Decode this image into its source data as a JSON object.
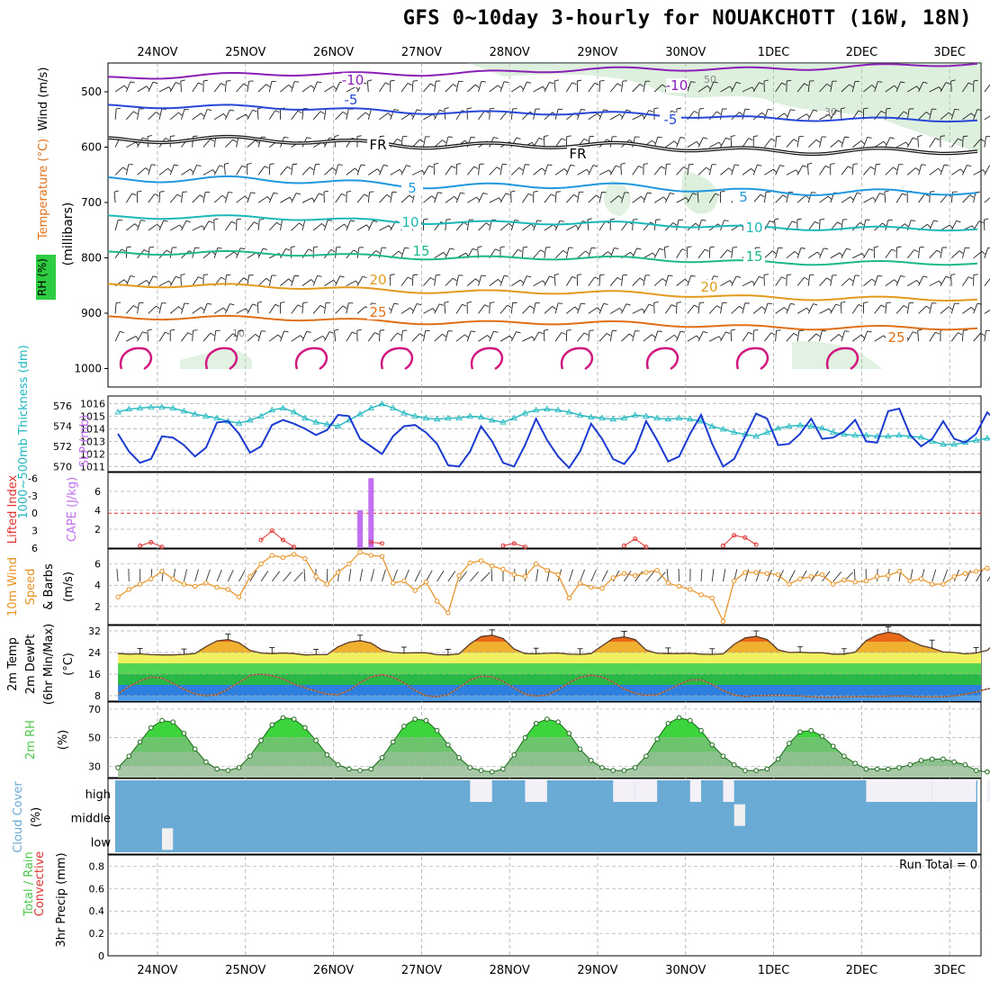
{
  "title": "GFS 0~10day 3-hourly for NOUAKCHOTT (16W, 18N)",
  "colors": {
    "rh_fill": "#9fd49f",
    "temp_purple": "#8a1fb8",
    "temp_blue": "#2747d8",
    "temp_lightblue": "#2098e0",
    "temp_teal": "#1cb8b8",
    "temp_green": "#1cb88c",
    "temp_orange": "#e49a1c",
    "temp_darkorange": "#e07018",
    "temp_magenta": "#d01880",
    "thickness": "#20b8c0",
    "slp": "#1a3ad0",
    "cape": "#c070f0",
    "lifted": "#e03030",
    "wind10": "#e89020",
    "rh2m": "#4cc94c",
    "cloud": "#6aabd6",
    "grid": "#aaaaaa"
  },
  "x_axis": {
    "dates": [
      "24NOV",
      "25NOV",
      "26NOV",
      "27NOV",
      "28NOV",
      "29NOV",
      "30NOV",
      "1DEC",
      "2DEC",
      "3DEC"
    ]
  },
  "panels": {
    "upper_air": {
      "ylabel_wind": "Wind (m/s)",
      "ylabel_temp": "Temperature (°C)",
      "ylabel_rh": "RH (%)",
      "ylabel_units": "(millibars)",
      "yticks": [
        "500",
        "600",
        "700",
        "800",
        "900",
        "1000"
      ]
    },
    "thickness_slp": {
      "ylabel_left": "1000~500mb Thickness (dm)",
      "ylabel_right": "SLP (mb)",
      "yticks_thickness": [
        "576",
        "574",
        "572",
        "570"
      ],
      "yticks_slp": [
        "1016",
        "1015",
        "1014",
        "1013",
        "1012",
        "1011"
      ]
    },
    "cape_li": {
      "ylabel_left": "Lifted Index",
      "ylabel_right": "CAPE (J/kg)",
      "yticks_li": [
        "-6",
        "-3",
        "0",
        "3",
        "6"
      ],
      "yticks_cape": [
        "6",
        "4",
        "2"
      ]
    },
    "wind10": {
      "ylabel": "10m Wind Speed & Barbs (m/s)",
      "ylabel_a": "10m Wind",
      "ylabel_b": "Speed",
      "ylabel_c": "& Barbs",
      "ylabel_d": "(m/s)",
      "yticks": [
        "6",
        "4",
        "2"
      ]
    },
    "temp2m": {
      "ylabel_a": "2m Temp",
      "ylabel_b": "2m DewPt",
      "ylabel_c": "(6hr Min/Max)",
      "ylabel_d": "(°C)",
      "yticks": [
        "32",
        "24",
        "16",
        "8"
      ]
    },
    "rh2m": {
      "ylabel": "2m RH",
      "ylabel_unit": "(%)",
      "yticks": [
        "70",
        "50",
        "30"
      ]
    },
    "cloud": {
      "ylabel": "Cloud Cover",
      "ylabel_unit": "(%)",
      "levels": [
        "high",
        "middle",
        "low"
      ]
    },
    "precip": {
      "ylabel_a": "Total / Rain",
      "ylabel_b": "Convective",
      "ylabel_c": "3hr Precip (mm)",
      "yticks": [
        "0.8",
        "0.6",
        "0.4",
        "0.2",
        "0"
      ],
      "run_total": "Run Total = 0"
    }
  },
  "contour_labels": {
    "m10": "-10",
    "m5": "-5",
    "fr": "FR",
    "p5": "5",
    "p10": "10",
    "p15": "15",
    "p20": "20",
    "p25": "25",
    "rh30": "30",
    "rh50": "50",
    "rh10": "10"
  },
  "chart_data": [
    {
      "type": "line",
      "title": "1000~500mb Thickness (dm) / SLP (mb)",
      "series": [
        {
          "name": "1000~500mb Thickness (dm)",
          "axis": "left",
          "ylim": [
            569.5,
            577
          ],
          "values": [
            575.4,
            575.7,
            575.8,
            575.9,
            575.9,
            575.8,
            575.5,
            575.2,
            575.0,
            574.8,
            574.5,
            574.3,
            574.6,
            575.0,
            575.6,
            575.8,
            575.4,
            574.8,
            574.4,
            574.2,
            574.0,
            574.6,
            575.2,
            575.8,
            576.2,
            575.8,
            575.3,
            575.0,
            574.8,
            574.7,
            574.8,
            574.8,
            575.0,
            574.9,
            574.6,
            574.4,
            574.8,
            575.3,
            575.6,
            575.7,
            575.6,
            575.4,
            575.1,
            574.9,
            574.8,
            574.7,
            574.8,
            575.1,
            575.0,
            574.8,
            574.7,
            574.8,
            574.7,
            574.5,
            574.0,
            573.7,
            573.4,
            573.2,
            573.0,
            573.4,
            573.8,
            574.0,
            574.1,
            574.0,
            573.8,
            573.4,
            573.2,
            573.1,
            573.1,
            573.0,
            573.0,
            573.1,
            573.0,
            572.9,
            572.5,
            572.2,
            572.2,
            572.4,
            572.6,
            572.8,
            572.7,
            572.5,
            572.3,
            572.3,
            572.4,
            572.4,
            572.2,
            572.0,
            571.9,
            571.8,
            571.5,
            571.3,
            571.3,
            571.2,
            571.0,
            570.8,
            570.6,
            570.3,
            570.1,
            570.0,
            569.8,
            569.8
          ]
        },
        {
          "name": "SLP (mb)",
          "axis": "right",
          "ylim": [
            1010.6,
            1016.6
          ],
          "values": [
            1013.6,
            1012.2,
            1011.3,
            1011.6,
            1013.4,
            1013.3,
            1012.7,
            1011.8,
            1012.5,
            1014.5,
            1014.6,
            1013.6,
            1012.1,
            1012.6,
            1014.3,
            1014.7,
            1014.4,
            1014.0,
            1013.5,
            1013.9,
            1015.1,
            1015.0,
            1013.2,
            1012.6,
            1012.0,
            1013.4,
            1014.2,
            1014.3,
            1013.7,
            1012.8,
            1011.1,
            1011.0,
            1012.2,
            1014.2,
            1013.0,
            1011.3,
            1011.0,
            1012.7,
            1014.8,
            1013.1,
            1011.8,
            1010.9,
            1012.2,
            1014.4,
            1013.2,
            1011.6,
            1011.2,
            1012.3,
            1014.6,
            1013.1,
            1011.4,
            1011.8,
            1013.6,
            1015.1,
            1012.8,
            1011.0,
            1011.6,
            1013.4,
            1015.2,
            1014.8,
            1012.7,
            1012.8,
            1013.6,
            1014.8,
            1013.2,
            1013.3,
            1013.8,
            1014.7,
            1013.0,
            1012.9,
            1015.4,
            1015.6,
            1013.5,
            1012.6,
            1013.2,
            1014.6,
            1013.2,
            1012.9,
            1013.6,
            1015.3,
            1014.5,
            1013.7,
            1013.0,
            1013.4,
            1014.7,
            1014.3,
            1013.0,
            1013.5,
            1016.1,
            1015.6,
            1013.6,
            1012.9,
            1014.0,
            1014.6,
            1013.7,
            1013.2,
            1013.8,
            1014.9,
            1013.8,
            1012.6,
            1013.1,
            1013.4
          ]
        }
      ],
      "xlabel": "",
      "grid": true
    },
    {
      "type": "bar",
      "title": "Lifted Index / CAPE (J/kg)",
      "series": [
        {
          "name": "CAPE (J/kg)",
          "axis": "right",
          "ylim": [
            0,
            8
          ],
          "bars": [
            {
              "day_index": 22,
              "value": 4.0
            },
            {
              "day_index": 23,
              "value": 7.4
            }
          ]
        },
        {
          "name": "Lifted Index",
          "axis": "left",
          "type": "line",
          "ylim": [
            6,
            -7
          ],
          "segments": [
            {
              "start": 2,
              "values": [
                5.6,
                5.0,
                5.8
              ]
            },
            {
              "start": 13,
              "values": [
                4.6,
                3.0,
                4.6,
                5.8
              ]
            },
            {
              "start": 23,
              "values": [
                5.0,
                5.2
              ]
            },
            {
              "start": 35,
              "values": [
                5.6,
                5.2,
                5.8
              ]
            },
            {
              "start": 46,
              "values": [
                5.6,
                4.4,
                5.8
              ]
            },
            {
              "start": 55,
              "values": [
                5.6,
                3.8,
                4.2,
                5.4
              ]
            },
            {
              "start": 96,
              "values": [
                4.4,
                3.8,
                4.6,
                4.6,
                5.8
              ]
            }
          ]
        }
      ],
      "reference_line_li": 0,
      "xlabel": "",
      "grid": true
    },
    {
      "type": "line",
      "title": "10m Wind Speed & Barbs (m/s)",
      "series": [
        {
          "name": "10m Wind Speed (m/s)",
          "ylim": [
            0.3,
            7.4
          ],
          "values": [
            2.9,
            3.6,
            4.1,
            4.6,
            5.3,
            4.6,
            4.1,
            3.9,
            4.2,
            3.8,
            3.6,
            2.9,
            4.8,
            6.0,
            6.8,
            6.6,
            6.9,
            6.5,
            4.8,
            4.1,
            5.2,
            6.0,
            7.1,
            6.8,
            6.7,
            4.2,
            4.4,
            3.5,
            4.3,
            2.5,
            1.4,
            4.9,
            6.1,
            6.3,
            5.8,
            5.5,
            5.0,
            4.8,
            6.0,
            5.4,
            5.0,
            2.8,
            4.2,
            3.8,
            3.7,
            4.7,
            5.1,
            4.9,
            5.2,
            5.4,
            4.2,
            3.9,
            3.6,
            3.1,
            2.8,
            0.6,
            4.4,
            5.2,
            5.2,
            5.1,
            5.0,
            4.1,
            4.6,
            4.8,
            5.0,
            4.1,
            4.5,
            4.3,
            4.4,
            4.8,
            4.9,
            5.3,
            4.4,
            4.6,
            4.1,
            4.1,
            4.8,
            5.1,
            5.3,
            5.6,
            5.1,
            4.2,
            4.2,
            4.7,
            4.6,
            4.5,
            4.7,
            4.4,
            5.1,
            5.2,
            5.4,
            4.7,
            2.6,
            4.3,
            6.1,
            6.2,
            6.5,
            6.6,
            7.0,
            6.8,
            6.2,
            6.3
          ]
        }
      ],
      "xlabel": "",
      "grid": true
    },
    {
      "type": "area",
      "title": "2m Temp / 2m DewPt (6hr Min/Max) (°C)",
      "series": [
        {
          "name": "2m Temp (°C)",
          "ylim": [
            6,
            34
          ],
          "values": [
            23.6,
            23.4,
            23.5,
            23.2,
            23.1,
            23.1,
            23.3,
            23.6,
            26.2,
            28.3,
            28.8,
            27.6,
            24.8,
            23.8,
            23.6,
            23.8,
            23.6,
            23.1,
            23.2,
            23.2,
            26.1,
            27.8,
            28.4,
            27.5,
            24.9,
            24.0,
            23.8,
            23.9,
            23.9,
            23.2,
            23.1,
            23.5,
            27.2,
            29.9,
            30.4,
            29.2,
            25.3,
            23.6,
            23.5,
            23.7,
            23.8,
            23.4,
            23.3,
            23.6,
            26.5,
            29.2,
            29.8,
            28.8,
            24.9,
            23.7,
            23.6,
            23.6,
            23.7,
            23.4,
            23.3,
            23.5,
            27.0,
            29.4,
            30.0,
            28.8,
            25.0,
            24.0,
            24.1,
            23.9,
            23.9,
            23.4,
            23.4,
            24.1,
            28.4,
            30.5,
            31.5,
            30.8,
            28.3,
            26.6,
            25.6,
            24.2,
            24.0,
            23.5,
            23.8,
            24.8,
            28.6,
            30.8,
            31.0,
            30.0,
            27.8,
            26.1,
            25.0,
            24.1,
            23.8,
            23.3,
            23.2,
            23.2,
            25.3,
            28.4,
            29.8,
            28.3,
            24.8,
            23.3,
            22.8,
            22.3,
            21.5,
            21.0
          ]
        },
        {
          "name": "2m DewPt (°C)",
          "ylim": [
            6,
            34
          ],
          "values": [
            8.5,
            11.4,
            13.5,
            14.9,
            14.5,
            12.6,
            10.4,
            8.7,
            8.0,
            8.4,
            10.4,
            13.0,
            15.5,
            16.0,
            15.4,
            14.2,
            12.3,
            10.9,
            9.7,
            8.6,
            8.4,
            10.0,
            12.8,
            14.9,
            15.8,
            14.8,
            12.8,
            10.0,
            8.0,
            7.6,
            8.4,
            11.0,
            13.8,
            15.2,
            15.0,
            13.3,
            10.8,
            8.6,
            7.9,
            8.2,
            10.2,
            12.8,
            14.8,
            15.6,
            14.9,
            13.0,
            10.5,
            8.9,
            8.2,
            8.3,
            10.1,
            12.2,
            13.8,
            13.9,
            12.2,
            9.9,
            8.3,
            7.7,
            8.0,
            8.1,
            8.2,
            8.1,
            7.9,
            7.6,
            7.4,
            7.4,
            7.5,
            7.6,
            7.7,
            7.7,
            7.8,
            7.9,
            7.8,
            7.6,
            7.5,
            7.6,
            7.9,
            8.6,
            9.4,
            10.5,
            10.9,
            10.2,
            9.1,
            8.6,
            8.8,
            9.4,
            10.2,
            10.8,
            10.9,
            10.2,
            9.0,
            8.2,
            7.9,
            8.7,
            11.2,
            13.6,
            14.6,
            14.7,
            14.2,
            13.4,
            12.6,
            12.1
          ]
        }
      ],
      "xlabel": "",
      "grid": true
    },
    {
      "type": "area",
      "title": "2m RH (%)",
      "series": [
        {
          "name": "2m RH (%)",
          "ylim": [
            22,
            75
          ],
          "values": [
            29,
            37,
            47,
            57,
            62,
            61,
            53,
            42,
            33,
            28,
            27,
            29,
            37,
            48,
            59,
            64,
            63,
            57,
            48,
            38,
            31,
            28,
            27,
            28,
            36,
            47,
            58,
            63,
            62,
            55,
            45,
            36,
            29,
            27,
            26,
            28,
            38,
            50,
            60,
            63,
            61,
            53,
            42,
            34,
            29,
            27,
            27,
            29,
            37,
            49,
            60,
            64,
            62,
            55,
            45,
            37,
            31,
            27,
            27,
            28,
            35,
            46,
            54,
            55,
            51,
            44,
            37,
            32,
            28,
            28,
            28,
            29,
            31,
            34,
            35,
            35,
            33,
            31,
            27,
            26,
            26,
            28,
            31,
            34,
            36,
            36,
            35,
            33,
            30,
            28,
            29,
            31,
            35,
            37,
            37,
            37,
            35,
            33,
            29,
            27,
            27,
            28
          ]
        }
      ],
      "xlabel": "",
      "grid": true
    },
    {
      "type": "heatmap",
      "title": "Cloud Cover (%)",
      "rows": [
        "high",
        "middle",
        "low"
      ],
      "note": "Blue = clear sky; white patches = cloud",
      "cloud_patches_high": [
        {
          "from_index": 32,
          "to_index": 34
        },
        {
          "from_index": 37,
          "to_index": 39
        },
        {
          "from_index": 45,
          "to_index": 47
        },
        {
          "from_index": 47,
          "to_index": 49
        },
        {
          "from_index": 52,
          "to_index": 53
        },
        {
          "from_index": 55,
          "to_index": 56
        },
        {
          "from_index": 68,
          "to_index": 74
        },
        {
          "from_index": 74,
          "to_index": 78
        },
        {
          "from_index": 79,
          "to_index": 89
        },
        {
          "from_index": 90,
          "to_index": 100
        }
      ],
      "cloud_patches_middle": [
        {
          "from_index": 56,
          "to_index": 57
        },
        {
          "from_index": 83,
          "to_index": 91
        },
        {
          "from_index": 95,
          "to_index": 98
        }
      ],
      "cloud_patches_low": [
        {
          "from_index": 4,
          "to_index": 5
        }
      ]
    },
    {
      "type": "bar",
      "title": "3hr Precip (mm)",
      "ylim": [
        0,
        0.9
      ],
      "values": [],
      "run_total": 0
    }
  ]
}
